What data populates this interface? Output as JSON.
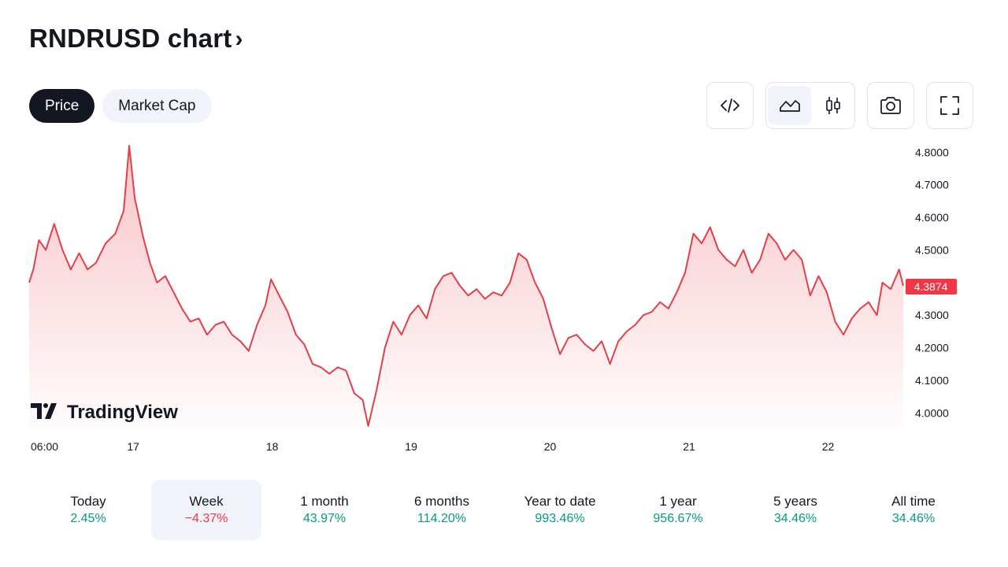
{
  "header": {
    "title": "RNDRUSD chart",
    "chevron": "›"
  },
  "tabs": [
    {
      "label": "Price",
      "active": true
    },
    {
      "label": "Market Cap",
      "active": false
    }
  ],
  "toolbar": {
    "embed_icon": "code-icon",
    "area_icon": "area-chart-icon",
    "candles_icon": "candlestick-icon",
    "snapshot_icon": "camera-icon",
    "fullscreen_icon": "fullscreen-icon",
    "active_chart_style": "area"
  },
  "watermark": {
    "text": "TradingView"
  },
  "colors": {
    "line": "#e0404a",
    "fill_top": "#f7b9be",
    "price_label_bg": "#f23645",
    "up": "#089981",
    "down": "#f23645"
  },
  "chart_data": {
    "type": "area",
    "xlabel": "",
    "ylabel": "",
    "ylim": [
      3.95,
      4.82
    ],
    "y_ticks": [
      "4.8000",
      "4.7000",
      "4.6000",
      "4.5000",
      "4.3000",
      "4.2000",
      "4.1000",
      "4.0000"
    ],
    "x_ticks": [
      {
        "label": "06:00",
        "x": 0.0
      },
      {
        "label": "17",
        "x": 0.75
      },
      {
        "label": "18",
        "x": 1.75
      },
      {
        "label": "19",
        "x": 2.75
      },
      {
        "label": "20",
        "x": 3.75
      },
      {
        "label": "21",
        "x": 4.75
      },
      {
        "label": "22",
        "x": 5.75
      }
    ],
    "x_range": [
      0.0,
      6.29
    ],
    "x_unit": "days since 16 06:00",
    "last_price": "4.3874",
    "grid": false,
    "series": [
      {
        "values": [
          [
            0.0,
            4.4
          ],
          [
            0.03,
            4.44
          ],
          [
            0.07,
            4.53
          ],
          [
            0.12,
            4.5
          ],
          [
            0.18,
            4.58
          ],
          [
            0.24,
            4.5
          ],
          [
            0.3,
            4.44
          ],
          [
            0.36,
            4.49
          ],
          [
            0.42,
            4.44
          ],
          [
            0.48,
            4.46
          ],
          [
            0.55,
            4.52
          ],
          [
            0.62,
            4.55
          ],
          [
            0.68,
            4.62
          ],
          [
            0.72,
            4.82
          ],
          [
            0.76,
            4.66
          ],
          [
            0.82,
            4.54
          ],
          [
            0.87,
            4.46
          ],
          [
            0.92,
            4.4
          ],
          [
            0.98,
            4.42
          ],
          [
            1.04,
            4.37
          ],
          [
            1.1,
            4.32
          ],
          [
            1.16,
            4.28
          ],
          [
            1.22,
            4.29
          ],
          [
            1.28,
            4.24
          ],
          [
            1.34,
            4.27
          ],
          [
            1.4,
            4.28
          ],
          [
            1.46,
            4.24
          ],
          [
            1.52,
            4.22
          ],
          [
            1.58,
            4.19
          ],
          [
            1.64,
            4.27
          ],
          [
            1.7,
            4.33
          ],
          [
            1.74,
            4.41
          ],
          [
            1.8,
            4.36
          ],
          [
            1.86,
            4.31
          ],
          [
            1.92,
            4.24
          ],
          [
            1.98,
            4.21
          ],
          [
            2.04,
            4.15
          ],
          [
            2.1,
            4.14
          ],
          [
            2.16,
            4.12
          ],
          [
            2.22,
            4.14
          ],
          [
            2.28,
            4.13
          ],
          [
            2.34,
            4.06
          ],
          [
            2.4,
            4.04
          ],
          [
            2.44,
            3.96
          ],
          [
            2.5,
            4.07
          ],
          [
            2.56,
            4.2
          ],
          [
            2.62,
            4.28
          ],
          [
            2.68,
            4.24
          ],
          [
            2.74,
            4.3
          ],
          [
            2.8,
            4.33
          ],
          [
            2.86,
            4.29
          ],
          [
            2.92,
            4.38
          ],
          [
            2.98,
            4.42
          ],
          [
            3.04,
            4.43
          ],
          [
            3.1,
            4.39
          ],
          [
            3.16,
            4.36
          ],
          [
            3.22,
            4.38
          ],
          [
            3.28,
            4.35
          ],
          [
            3.34,
            4.37
          ],
          [
            3.4,
            4.36
          ],
          [
            3.46,
            4.4
          ],
          [
            3.52,
            4.49
          ],
          [
            3.58,
            4.47
          ],
          [
            3.64,
            4.4
          ],
          [
            3.7,
            4.35
          ],
          [
            3.76,
            4.26
          ],
          [
            3.82,
            4.18
          ],
          [
            3.88,
            4.23
          ],
          [
            3.94,
            4.24
          ],
          [
            4.0,
            4.21
          ],
          [
            4.06,
            4.19
          ],
          [
            4.12,
            4.22
          ],
          [
            4.18,
            4.15
          ],
          [
            4.24,
            4.22
          ],
          [
            4.3,
            4.25
          ],
          [
            4.36,
            4.27
          ],
          [
            4.42,
            4.3
          ],
          [
            4.48,
            4.31
          ],
          [
            4.54,
            4.34
          ],
          [
            4.6,
            4.32
          ],
          [
            4.66,
            4.37
          ],
          [
            4.72,
            4.43
          ],
          [
            4.78,
            4.55
          ],
          [
            4.84,
            4.52
          ],
          [
            4.9,
            4.57
          ],
          [
            4.96,
            4.5
          ],
          [
            5.02,
            4.47
          ],
          [
            5.08,
            4.45
          ],
          [
            5.14,
            4.5
          ],
          [
            5.2,
            4.43
          ],
          [
            5.26,
            4.47
          ],
          [
            5.32,
            4.55
          ],
          [
            5.38,
            4.52
          ],
          [
            5.44,
            4.47
          ],
          [
            5.5,
            4.5
          ],
          [
            5.56,
            4.47
          ],
          [
            5.62,
            4.36
          ],
          [
            5.68,
            4.42
          ],
          [
            5.74,
            4.37
          ],
          [
            5.8,
            4.28
          ],
          [
            5.86,
            4.24
          ],
          [
            5.92,
            4.29
          ],
          [
            5.98,
            4.32
          ],
          [
            6.04,
            4.34
          ],
          [
            6.1,
            4.3
          ],
          [
            6.14,
            4.4
          ],
          [
            6.2,
            4.38
          ],
          [
            6.26,
            4.44
          ],
          [
            6.29,
            4.39
          ]
        ]
      }
    ]
  },
  "periods": [
    {
      "label": "Today",
      "value": "2.45%",
      "direction": "up",
      "selected": false
    },
    {
      "label": "Week",
      "value": "−4.37%",
      "direction": "down",
      "selected": true
    },
    {
      "label": "1 month",
      "value": "43.97%",
      "direction": "up",
      "selected": false
    },
    {
      "label": "6 months",
      "value": "114.20%",
      "direction": "up",
      "selected": false
    },
    {
      "label": "Year to date",
      "value": "993.46%",
      "direction": "up",
      "selected": false
    },
    {
      "label": "1 year",
      "value": "956.67%",
      "direction": "up",
      "selected": false
    },
    {
      "label": "5 years",
      "value": "34.46%",
      "direction": "up",
      "selected": false
    },
    {
      "label": "All time",
      "value": "34.46%",
      "direction": "up",
      "selected": false
    }
  ]
}
